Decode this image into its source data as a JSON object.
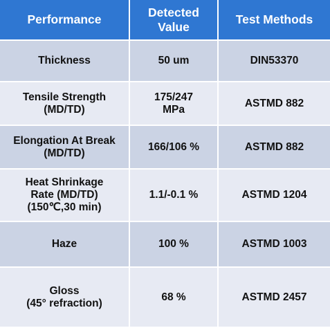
{
  "header": [
    "Performance",
    "Detected\nValue",
    "Test Methods"
  ],
  "rows": [
    [
      "Thickness",
      "50 um",
      "DIN53370"
    ],
    [
      "Tensile Strength\n(MD/TD)",
      "175/247\nMPa",
      "ASTMD 882"
    ],
    [
      "Elongation At Break\n(MD/TD)",
      "166/106 %",
      "ASTMD 882"
    ],
    [
      "Heat Shrinkage\nRate (MD/TD)\n(150℃,30 min)",
      "1.1/-0.1 %",
      "ASTMD 1204"
    ],
    [
      "Haze",
      "100 %",
      "ASTMD 1003"
    ],
    [
      "Gloss\n(45° refraction)",
      "68 %",
      "ASTMD 2457"
    ]
  ],
  "colors": {
    "header_bg": "#2F77D2",
    "row_dark": "#CBD3E4",
    "row_light": "#E7EAF3"
  }
}
